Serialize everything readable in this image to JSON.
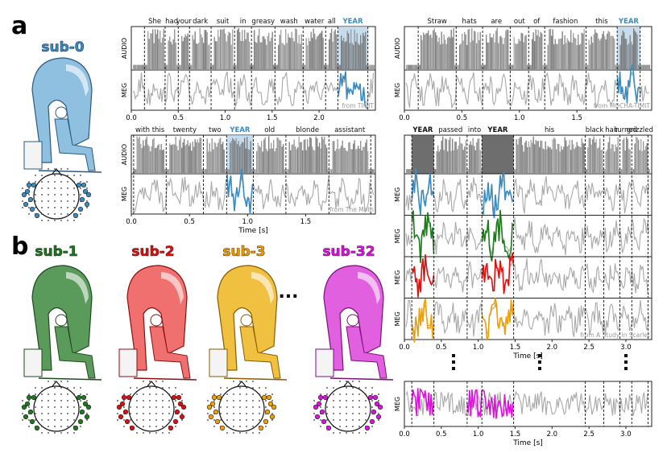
{
  "colors": {
    "sub0": "#3a8bc0",
    "sub1": "#1f7a1f",
    "sub2": "#e01010",
    "sub3": "#f0a000",
    "sub32": "#e010e0",
    "grey": "#a8a8a8",
    "spectro": "#6e6e6e",
    "highlight": "#b9d4ea"
  },
  "panel_a": {
    "label": "a",
    "subject": "sub-0",
    "timit": {
      "words": [
        "She",
        "had",
        "your",
        "dark",
        "suit",
        "in",
        "greasy",
        "wash",
        "water",
        "all",
        "YEAR"
      ],
      "source": "from TIMIT",
      "x_ticks": [
        "0.0",
        "0.5",
        "1.0",
        "1.5",
        "2.0"
      ]
    },
    "mocha": {
      "words": [
        "Straw",
        "hats",
        "are",
        "out",
        "of",
        "fashion",
        "this",
        "YEAR"
      ],
      "source": "from MOCHA-TIMIT",
      "x_ticks": [
        "0.0",
        "0.5",
        "1.0",
        "1.5"
      ]
    },
    "moth": {
      "words": [
        "with this",
        "twenty",
        "two",
        "YEAR",
        "old",
        "blonde",
        "assistant"
      ],
      "source": "from The Moth",
      "x_ticks": [
        "0.0",
        "0.5",
        "1.0",
        "1.5"
      ],
      "xlabel": "Time [s]"
    },
    "audio_label": "AUDIO",
    "meg_label": "MEG"
  },
  "panel_b": {
    "label": "b",
    "subjects": [
      "sub-1",
      "sub-2",
      "sub-3",
      "sub-32"
    ],
    "ellipsis": "...",
    "scarlet": {
      "words": [
        "YEAR",
        "passed",
        "into",
        "YEAR",
        "his",
        "black",
        "hair",
        "turned",
        "grizzled"
      ],
      "source": "from A Study in Scarlet",
      "x_ticks": [
        "0.0",
        "0.5",
        "1.0",
        "1.5",
        "2.0",
        "2.5",
        "3.0"
      ],
      "xlabel": "Time [s]"
    }
  }
}
